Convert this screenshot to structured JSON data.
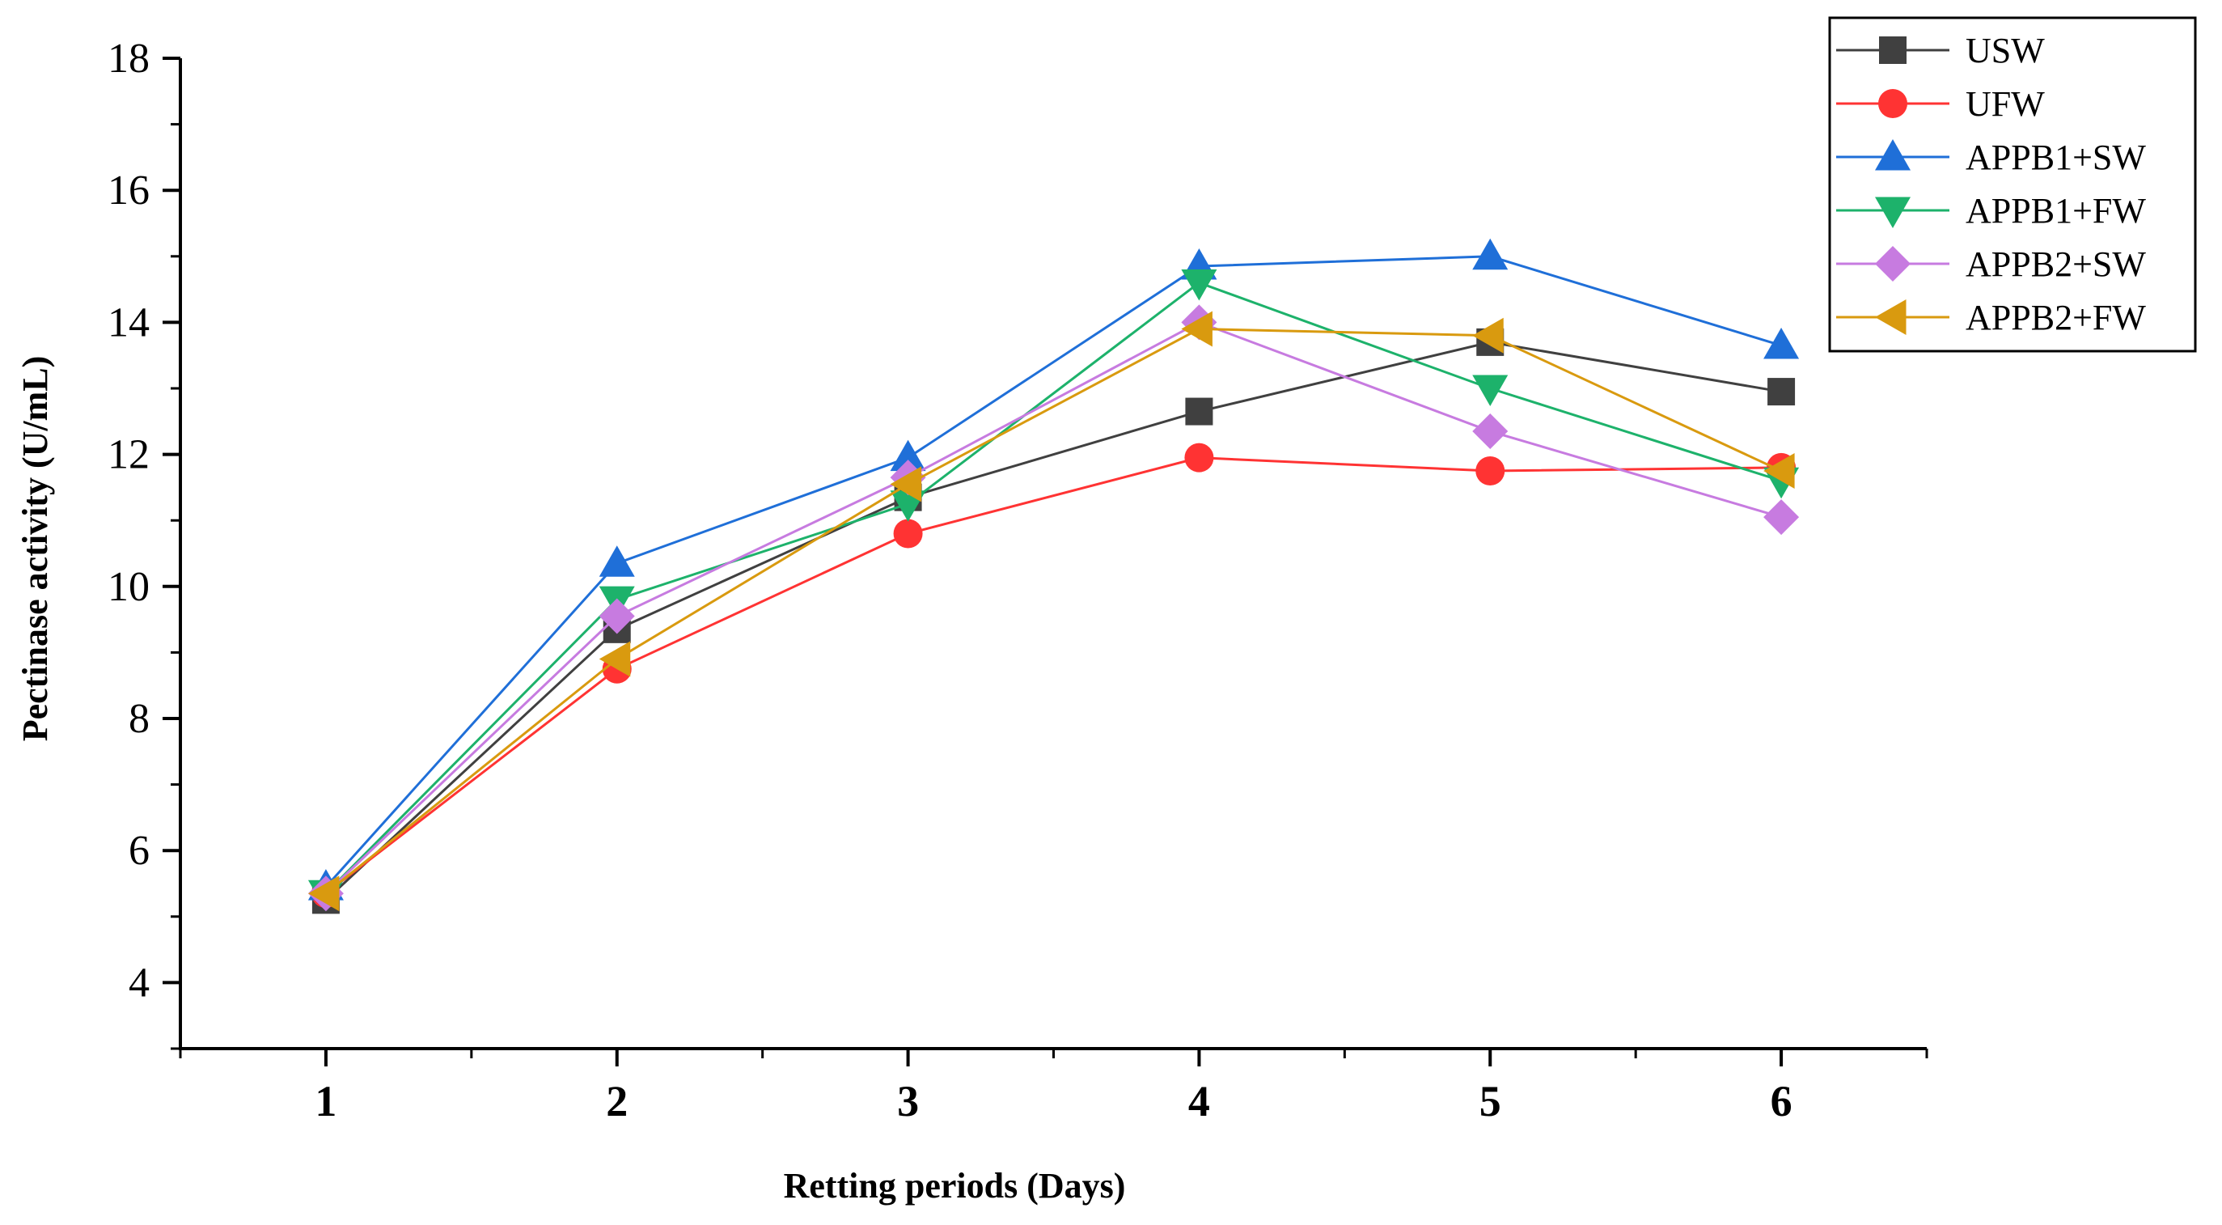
{
  "chart_data": {
    "type": "line",
    "title": "",
    "xlabel": "Retting periods (Days)",
    "ylabel": "Pectinase activity (U/mL)",
    "x": [
      1,
      2,
      3,
      4,
      5,
      6
    ],
    "xtick_labels": [
      "1",
      "2",
      "3",
      "4",
      "5",
      "6"
    ],
    "xlim": [
      0.5,
      6.5
    ],
    "ylim": [
      3,
      18
    ],
    "yticks": [
      4,
      6,
      8,
      10,
      12,
      14,
      16,
      18
    ],
    "ytick_labels": [
      "4",
      "6",
      "8",
      "10",
      "12",
      "14",
      "16",
      "18"
    ],
    "grid": false,
    "legend_position": "top-right",
    "series": [
      {
        "name": "USW",
        "color": "#404040",
        "marker": "square",
        "values": [
          5.25,
          9.35,
          11.35,
          12.65,
          13.7,
          12.95
        ]
      },
      {
        "name": "UFW",
        "color": "#ff3333",
        "marker": "circle",
        "values": [
          5.35,
          8.75,
          10.8,
          11.95,
          11.75,
          11.8
        ]
      },
      {
        "name": "APPB1+SW",
        "color": "#1f6fd8",
        "marker": "triangle-up",
        "values": [
          5.45,
          10.35,
          11.95,
          14.85,
          15.0,
          13.65
        ]
      },
      {
        "name": "APPB1+FW",
        "color": "#1db26b",
        "marker": "triangle-down",
        "values": [
          5.35,
          9.8,
          11.25,
          14.6,
          13.0,
          11.6
        ]
      },
      {
        "name": "APPB2+SW",
        "color": "#c77be0",
        "marker": "diamond",
        "values": [
          5.35,
          9.55,
          11.65,
          14.0,
          12.35,
          11.05
        ]
      },
      {
        "name": "APPB2+FW",
        "color": "#d99a0f",
        "marker": "triangle-left",
        "values": [
          5.35,
          8.9,
          11.55,
          13.9,
          13.8,
          11.75
        ]
      }
    ]
  }
}
